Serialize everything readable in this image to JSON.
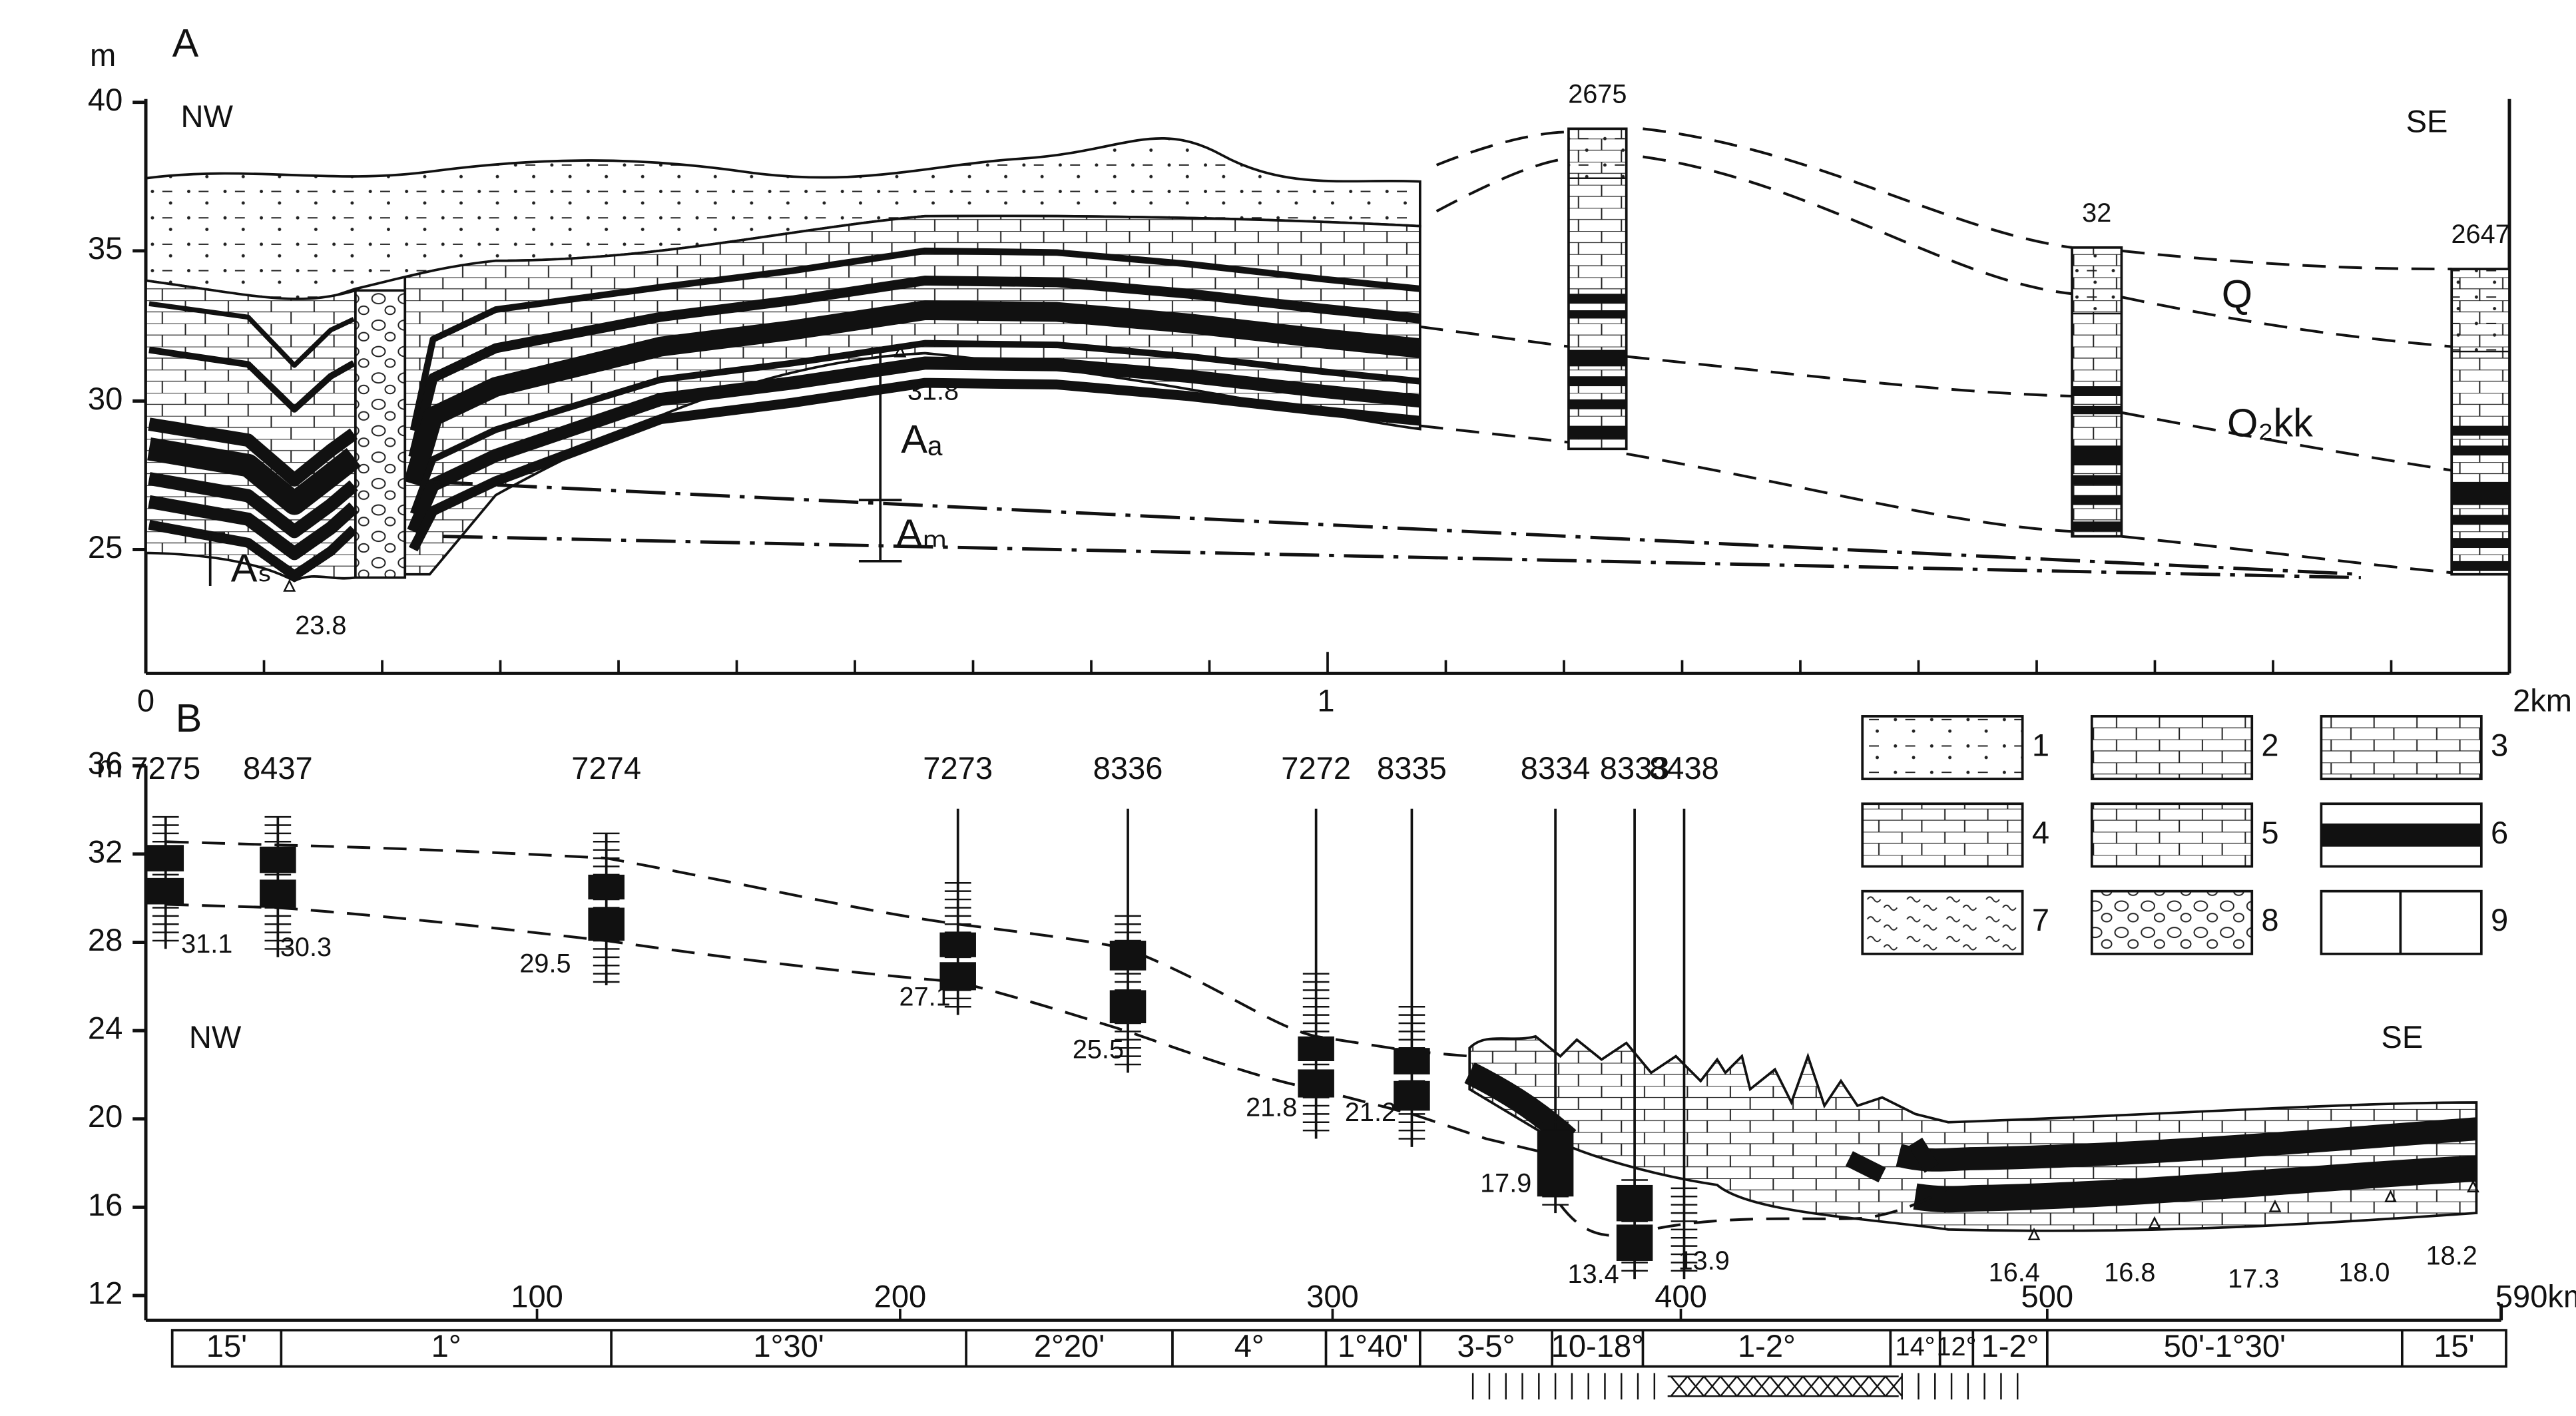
{
  "panel_a": {
    "label": "A",
    "unit": "m",
    "nw": "NW",
    "se": "SE",
    "yticks": [
      "40",
      "35",
      "30",
      "25"
    ],
    "xticks": [
      "0",
      "1",
      "2km"
    ],
    "wells": [
      "2675",
      "32",
      "2647"
    ],
    "formations": [
      "Q",
      "O₂kk"
    ],
    "intervals": [
      "Aₐ",
      "Aₘ",
      "Aₛ"
    ],
    "elevations": [
      "31.8",
      "23.8"
    ]
  },
  "panel_b": {
    "label": "B",
    "unit": "m",
    "nw": "NW",
    "se": "SE",
    "yticks": [
      "36",
      "32",
      "28",
      "24",
      "20",
      "16",
      "12"
    ],
    "xticks": [
      "100",
      "200",
      "300",
      "400",
      "500",
      "590km"
    ],
    "wells": [
      {
        "id": "7275",
        "bottom": "31.1"
      },
      {
        "id": "8437",
        "bottom": "30.3"
      },
      {
        "id": "7274",
        "bottom": "29.5"
      },
      {
        "id": "7273",
        "bottom": "27.1"
      },
      {
        "id": "8336",
        "bottom": "25.5"
      },
      {
        "id": "7272",
        "bottom": "21.8"
      },
      {
        "id": "8335",
        "bottom": "21.2"
      },
      {
        "id": "8334",
        "bottom": "17.9"
      },
      {
        "id": "8333",
        "bottom": "13.4"
      },
      {
        "id": "8438",
        "bottom": "13.9"
      }
    ],
    "elevations": [
      "16.4",
      "16.8",
      "17.3",
      "18.0",
      "18.2"
    ],
    "legend": [
      "1",
      "2",
      "3",
      "4",
      "5",
      "6",
      "7",
      "8",
      "9"
    ],
    "dips": [
      "15'",
      "1°",
      "1°30'",
      "2°20'",
      "4°",
      "1°40'",
      "3-5°",
      "10-18°",
      "1-2°",
      "14°",
      "12°",
      "1-2°",
      "50'-1°30'",
      "15'"
    ]
  }
}
